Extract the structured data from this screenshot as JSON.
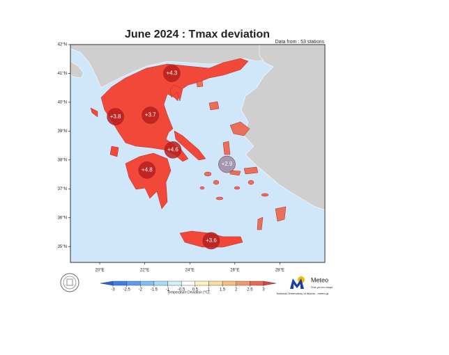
{
  "chart_data": {
    "type": "map",
    "title": "June 2024 : Tmax deviation",
    "subtitle": "Data from : 53 stations",
    "xlim": [
      18.7,
      30.0
    ],
    "ylim": [
      34.45,
      42.0
    ],
    "xticks": [
      {
        "value": 20,
        "label": "20°E"
      },
      {
        "value": 22,
        "label": "22°E"
      },
      {
        "value": 24,
        "label": "24°E"
      },
      {
        "value": 26,
        "label": "26°E"
      },
      {
        "value": 28,
        "label": "28°E"
      }
    ],
    "yticks": [
      {
        "value": 35,
        "label": "35°N"
      },
      {
        "value": 36,
        "label": "36°N"
      },
      {
        "value": 37,
        "label": "37°N"
      },
      {
        "value": 38,
        "label": "38°N"
      },
      {
        "value": 39,
        "label": "39°N"
      },
      {
        "value": 40,
        "label": "40°N"
      },
      {
        "value": 41,
        "label": "41°N"
      },
      {
        "value": 42,
        "label": "42°N"
      }
    ],
    "x": [
      23.2,
      20.7,
      22.25,
      23.25,
      22.1,
      25.65,
      24.95
    ],
    "y": [
      41.0,
      39.5,
      39.55,
      38.35,
      37.65,
      37.85,
      35.2
    ],
    "values": [
      4.3,
      3.8,
      3.7,
      4.6,
      4.8,
      2.9,
      3.6
    ],
    "value_labels": [
      "+4.3",
      "+3.8",
      "+3.7",
      "+4.6",
      "+4.8",
      "+2.9",
      "+3.6"
    ],
    "colors": [
      "#b8201f",
      "#b8201f",
      "#b8201f",
      "#b8201f",
      "#b8201f",
      "#9a8aa4",
      "#b8201f"
    ],
    "colorbar": {
      "label": "Temperature Deviation (°C)",
      "ticks": [
        -3,
        -2.5,
        -2,
        -1.5,
        -1,
        -0.5,
        0.5,
        1,
        1.5,
        2,
        2.5,
        3
      ],
      "colors": [
        "#2f5fd0",
        "#3c7fe8",
        "#5a9cf0",
        "#80bff5",
        "#a8dcf8",
        "#d0f0fb",
        "#ffffff",
        "#fbf3c0",
        "#f8dea0",
        "#f5c080",
        "#f09a70",
        "#e86a55",
        "#e04040"
      ]
    }
  },
  "logo": {
    "name": "Meteo",
    "tagline": "Όλα για τον καιρό",
    "credit": "National Observatory of Athens - meteo.gr"
  }
}
